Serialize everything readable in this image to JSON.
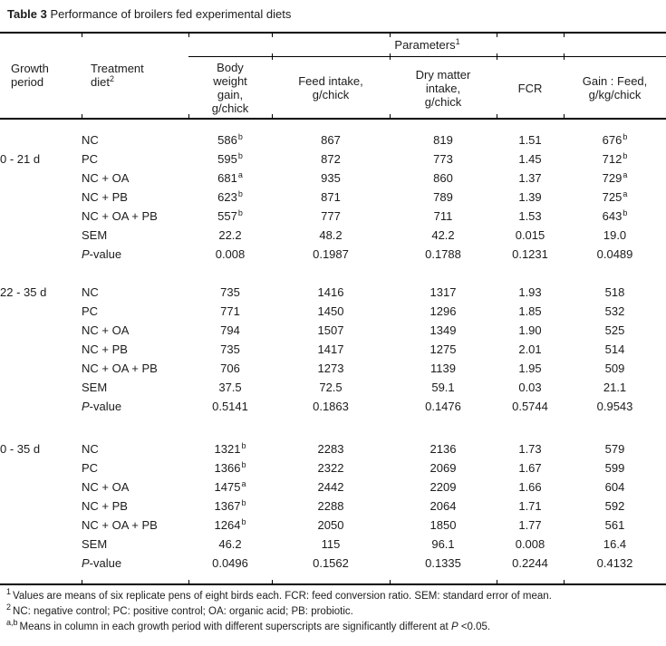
{
  "title": {
    "bold": "Table 3",
    "text": " Performance of broilers fed experimental diets"
  },
  "table": {
    "group_header": {
      "label": "Parameters",
      "sup": "1"
    },
    "header": {
      "growth_period": "Growth period",
      "treatment": "Treatment diet",
      "treatment_sup": "2",
      "param_columns": [
        "Body weight gain, g/chick",
        "Feed intake, g/chick",
        "Dry matter intake, g/chick",
        "FCR",
        "Gain : Feed, g/kg/chick"
      ]
    },
    "groups": [
      {
        "period": "0 - 21 d",
        "period_row": 1,
        "rows": [
          {
            "diet": "NC",
            "values": [
              {
                "v": "586",
                "sup": "b"
              },
              "867",
              "819",
              "1.51",
              {
                "v": "676",
                "sup": "b"
              }
            ]
          },
          {
            "diet": "PC",
            "values": [
              {
                "v": "595",
                "sup": "b"
              },
              "872",
              "773",
              "1.45",
              {
                "v": "712",
                "sup": "b"
              }
            ]
          },
          {
            "diet": "NC + OA",
            "values": [
              {
                "v": "681",
                "sup": "a"
              },
              "935",
              "860",
              "1.37",
              {
                "v": "729",
                "sup": "a"
              }
            ]
          },
          {
            "diet": "NC + PB",
            "values": [
              {
                "v": "623",
                "sup": "b"
              },
              "871",
              "789",
              "1.39",
              {
                "v": "725",
                "sup": "a"
              }
            ]
          },
          {
            "diet": "NC + OA + PB",
            "values": [
              {
                "v": "557",
                "sup": "b"
              },
              "777",
              "711",
              "1.53",
              {
                "v": "643",
                "sup": "b"
              }
            ]
          },
          {
            "diet": "SEM",
            "values": [
              "22.2",
              "48.2",
              "42.2",
              "0.015",
              "19.0"
            ]
          },
          {
            "diet": "P-value",
            "diet_italic_len": 1,
            "values": [
              "0.008",
              "0.1987",
              "0.1788",
              "0.1231",
              "0.0489"
            ]
          }
        ]
      },
      {
        "period": "22 - 35 d",
        "period_row": 0,
        "rows": [
          {
            "diet": "NC",
            "values": [
              "735",
              "1416",
              "1317",
              "1.93",
              "518"
            ]
          },
          {
            "diet": "PC",
            "values": [
              "771",
              "1450",
              "1296",
              "1.85",
              "532"
            ]
          },
          {
            "diet": "NC + OA",
            "values": [
              "794",
              "1507",
              "1349",
              "1.90",
              "525"
            ]
          },
          {
            "diet": "NC + PB",
            "values": [
              "735",
              "1417",
              "1275",
              "2.01",
              "514"
            ]
          },
          {
            "diet": "NC + OA + PB",
            "values": [
              "706",
              "1273",
              "1139",
              "1.95",
              "509"
            ]
          },
          {
            "diet": "SEM",
            "values": [
              "37.5",
              "72.5",
              "59.1",
              "0.03",
              "21.1"
            ]
          },
          {
            "diet": "P-value",
            "diet_italic_len": 1,
            "values": [
              "0.5141",
              "0.1863",
              "0.1476",
              "0.5744",
              "0.9543"
            ]
          }
        ]
      },
      {
        "period": "0 - 35 d",
        "period_row": 0,
        "rows": [
          {
            "diet": "NC",
            "values": [
              {
                "v": "1321",
                "sup": "b"
              },
              "2283",
              "2136",
              "1.73",
              "579"
            ]
          },
          {
            "diet": "PC",
            "values": [
              {
                "v": "1366",
                "sup": "b"
              },
              "2322",
              "2069",
              "1.67",
              "599"
            ]
          },
          {
            "diet": "NC + OA",
            "values": [
              {
                "v": "1475",
                "sup": "a"
              },
              "2442",
              "2209",
              "1.66",
              "604"
            ]
          },
          {
            "diet": "NC + PB",
            "values": [
              {
                "v": "1367",
                "sup": "b"
              },
              "2288",
              "2064",
              "1.71",
              "592"
            ]
          },
          {
            "diet": "NC + OA + PB",
            "values": [
              {
                "v": "1264",
                "sup": "b"
              },
              "2050",
              "1850",
              "1.77",
              "561"
            ]
          },
          {
            "diet": "SEM",
            "values": [
              "46.2",
              "115",
              "96.1",
              "0.008",
              "16.4"
            ]
          },
          {
            "diet": "P-value",
            "diet_italic_len": 1,
            "values": [
              "0.0496",
              "0.1562",
              "0.1335",
              "0.2244",
              "0.4132"
            ]
          }
        ]
      }
    ]
  },
  "footnotes": [
    {
      "sup": "1",
      "runs": [
        {
          "t": "Values are means of six replicate pens of eight birds each. FCR: feed conversion ratio. SEM: standard error of mean."
        }
      ]
    },
    {
      "sup": "2",
      "runs": [
        {
          "t": "NC: negative control; PC: positive control; OA: organic acid; PB: probiotic."
        }
      ]
    },
    {
      "sup": "a,b",
      "runs": [
        {
          "t": "Means in column in each growth period with different superscripts are significantly different at "
        },
        {
          "t": "P",
          "i": true
        },
        {
          "t": " <0.05."
        }
      ]
    }
  ],
  "colors": {
    "text": "#1c1c1c",
    "rule": "#000000",
    "background": "#ffffff"
  }
}
